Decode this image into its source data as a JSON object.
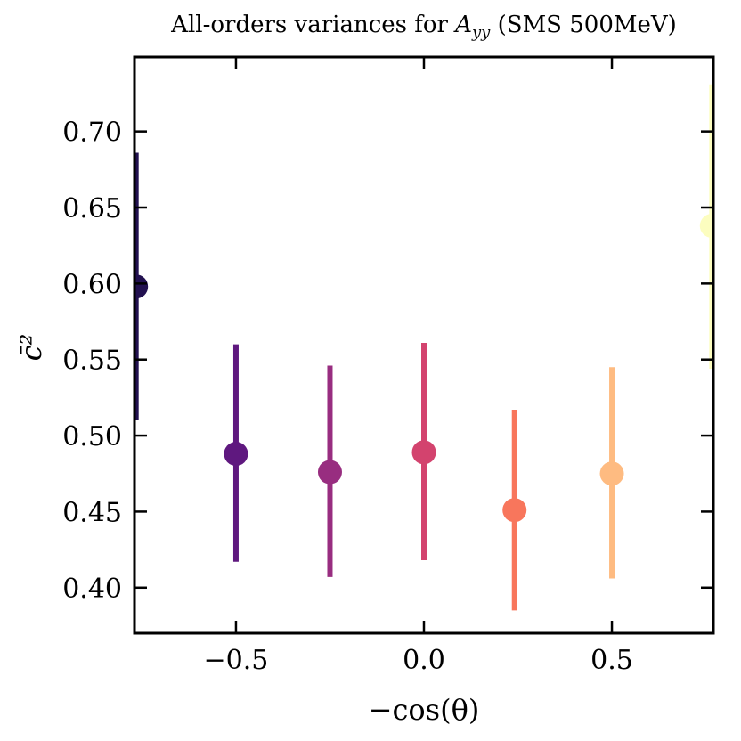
{
  "chart_data": {
    "type": "scatter",
    "title": "All-orders variances for A_yy (SMS 500MeV)",
    "title_parts": {
      "prefix": "All-orders variances for ",
      "symbol": "A",
      "subscript": "yy",
      "suffix": " (SMS 500MeV)"
    },
    "xlabel": "−cos(θ)",
    "ylabel": "c̄²",
    "xlim": [
      -0.77,
      0.77
    ],
    "ylim": [
      0.37,
      0.749
    ],
    "xticks": [
      -0.5,
      0.0,
      0.5
    ],
    "xtick_labels": [
      "−0.5",
      "0.0",
      "0.5"
    ],
    "yticks": [
      0.4,
      0.45,
      0.5,
      0.55,
      0.6,
      0.65,
      0.7
    ],
    "ytick_labels": [
      "0.40",
      "0.45",
      "0.50",
      "0.55",
      "0.60",
      "0.65",
      "0.70"
    ],
    "grid": false,
    "points": [
      {
        "x": -0.766,
        "y": 0.598,
        "ylow": 0.51,
        "yhigh": 0.686,
        "color": "#221150"
      },
      {
        "x": -0.5,
        "y": 0.488,
        "ylow": 0.417,
        "yhigh": 0.56,
        "color": "#5f187f"
      },
      {
        "x": -0.25,
        "y": 0.476,
        "ylow": 0.407,
        "yhigh": 0.546,
        "color": "#982d80"
      },
      {
        "x": 0.0,
        "y": 0.489,
        "ylow": 0.418,
        "yhigh": 0.561,
        "color": "#d3436e"
      },
      {
        "x": 0.241,
        "y": 0.451,
        "ylow": 0.385,
        "yhigh": 0.517,
        "color": "#f8765c"
      },
      {
        "x": 0.5,
        "y": 0.475,
        "ylow": 0.406,
        "yhigh": 0.545,
        "color": "#febb81"
      },
      {
        "x": 0.766,
        "y": 0.638,
        "ylow": 0.544,
        "yhigh": 0.731,
        "color": "#fcfdbf"
      }
    ]
  }
}
